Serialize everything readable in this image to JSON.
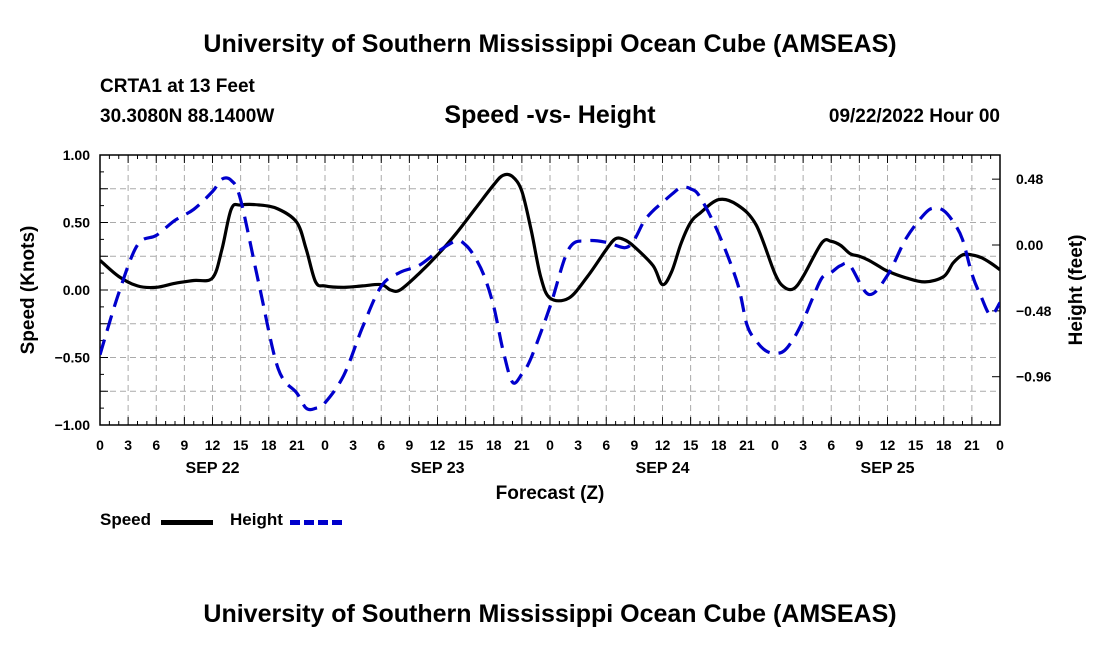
{
  "title": "University of Southern Mississippi Ocean Cube (AMSEAS)",
  "footer_title": "University of Southern Mississippi Ocean Cube (AMSEAS)",
  "station": "CRTA1 at 13 Feet",
  "location": "30.3080N  88.1400W",
  "date_hour": "09/22/2022 Hour 00",
  "legend": {
    "speed_label": "Speed",
    "height_label": "Height"
  },
  "colors": {
    "speed": "#000000",
    "height": "#0000cc",
    "grid": "#aaaaaa"
  },
  "chart_data": {
    "type": "line",
    "title": "Speed -vs- Height",
    "xlabel": "Forecast (Z)",
    "ylabel_left": "Speed (Knots)",
    "ylabel_right": "Height (feet)",
    "x_range_hours": [
      0,
      96
    ],
    "y_left_range": [
      -1.0,
      1.0
    ],
    "y_right_range": [
      -1.312,
      0.656
    ],
    "y_left_ticks": [
      {
        "v": 1.0,
        "label": "1.00"
      },
      {
        "v": 0.5,
        "label": "0.50"
      },
      {
        "v": 0.0,
        "label": "0.00"
      },
      {
        "v": -0.5,
        "label": "−0.50"
      },
      {
        "v": -1.0,
        "label": "−1.00"
      }
    ],
    "y_right_ticks": [
      {
        "v": 0.48,
        "label": "0.48"
      },
      {
        "v": 0.0,
        "label": "0.00"
      },
      {
        "v": -0.48,
        "label": "−0.48"
      },
      {
        "v": -0.96,
        "label": "−0.96"
      }
    ],
    "x_tick_labels": [
      "0",
      "3",
      "6",
      "9",
      "12",
      "15",
      "18",
      "21",
      "0",
      "3",
      "6",
      "9",
      "12",
      "15",
      "18",
      "21",
      "0",
      "3",
      "6",
      "9",
      "12",
      "15",
      "18",
      "21",
      "0",
      "3",
      "6",
      "9",
      "12",
      "15",
      "18",
      "21",
      "0"
    ],
    "day_labels": [
      {
        "hour": 12,
        "label": "SEP 22"
      },
      {
        "hour": 36,
        "label": "SEP 23"
      },
      {
        "hour": 60,
        "label": "SEP 24"
      },
      {
        "hour": 84,
        "label": "SEP 25"
      }
    ],
    "grid": true,
    "series": [
      {
        "name": "Speed",
        "axis": "left",
        "style": "solid",
        "x": [
          0,
          2,
          4,
          6,
          8,
          10,
          12,
          13,
          14,
          15,
          17,
          19,
          21,
          22,
          23,
          24,
          26,
          28,
          30,
          31,
          32,
          34,
          36,
          38,
          40,
          42,
          43,
          44,
          45,
          46,
          47,
          48,
          50,
          52,
          54,
          55,
          56,
          57,
          59,
          60,
          61,
          62,
          63,
          64,
          66,
          68,
          70,
          72,
          73,
          74,
          75,
          77,
          78,
          79,
          80,
          81,
          82,
          83,
          84,
          86,
          88,
          90,
          91,
          92,
          93,
          94,
          95,
          96
        ],
        "y": [
          0.22,
          0.1,
          0.03,
          0.02,
          0.05,
          0.07,
          0.09,
          0.3,
          0.6,
          0.63,
          0.63,
          0.6,
          0.5,
          0.3,
          0.06,
          0.03,
          0.02,
          0.03,
          0.04,
          0.0,
          0.0,
          0.12,
          0.26,
          0.42,
          0.6,
          0.78,
          0.85,
          0.84,
          0.73,
          0.44,
          0.1,
          -0.06,
          -0.06,
          0.1,
          0.3,
          0.38,
          0.37,
          0.32,
          0.18,
          0.04,
          0.14,
          0.35,
          0.5,
          0.57,
          0.67,
          0.63,
          0.48,
          0.12,
          0.02,
          0.01,
          0.1,
          0.35,
          0.36,
          0.33,
          0.27,
          0.25,
          0.22,
          0.18,
          0.14,
          0.09,
          0.06,
          0.1,
          0.2,
          0.26,
          0.26,
          0.24,
          0.2,
          0.15
        ]
      },
      {
        "name": "Height",
        "axis": "right",
        "style": "dashed",
        "x": [
          0,
          2,
          4,
          6,
          8,
          10,
          12,
          13,
          14,
          15,
          17,
          19,
          21,
          22,
          23,
          24,
          26,
          28,
          30,
          32,
          34,
          36,
          38,
          39,
          40,
          41,
          42,
          43,
          44,
          45,
          46,
          48,
          50,
          52,
          54,
          56,
          57,
          58,
          59,
          60,
          61,
          62,
          63,
          64,
          66,
          68,
          69,
          70,
          71,
          72,
          73,
          74,
          75,
          76,
          77,
          78,
          79,
          80,
          82,
          84,
          86,
          88,
          89,
          90,
          91,
          92,
          93,
          94,
          95,
          96
        ],
        "y": [
          -0.8,
          -0.35,
          0.0,
          0.07,
          0.18,
          0.26,
          0.39,
          0.48,
          0.47,
          0.33,
          -0.3,
          -0.9,
          -1.08,
          -1.19,
          -1.19,
          -1.15,
          -0.95,
          -0.6,
          -0.3,
          -0.2,
          -0.15,
          -0.05,
          0.03,
          0.0,
          -0.09,
          -0.23,
          -0.45,
          -0.77,
          -1.0,
          -0.94,
          -0.82,
          -0.45,
          -0.03,
          0.03,
          0.02,
          -0.02,
          0.04,
          0.17,
          0.25,
          0.31,
          0.37,
          0.42,
          0.41,
          0.35,
          0.08,
          -0.28,
          -0.58,
          -0.7,
          -0.77,
          -0.79,
          -0.77,
          -0.68,
          -0.55,
          -0.39,
          -0.24,
          -0.2,
          -0.15,
          -0.15,
          -0.36,
          -0.22,
          0.05,
          0.23,
          0.27,
          0.25,
          0.17,
          0.04,
          -0.21,
          -0.38,
          -0.51,
          -0.42
        ]
      }
    ]
  }
}
